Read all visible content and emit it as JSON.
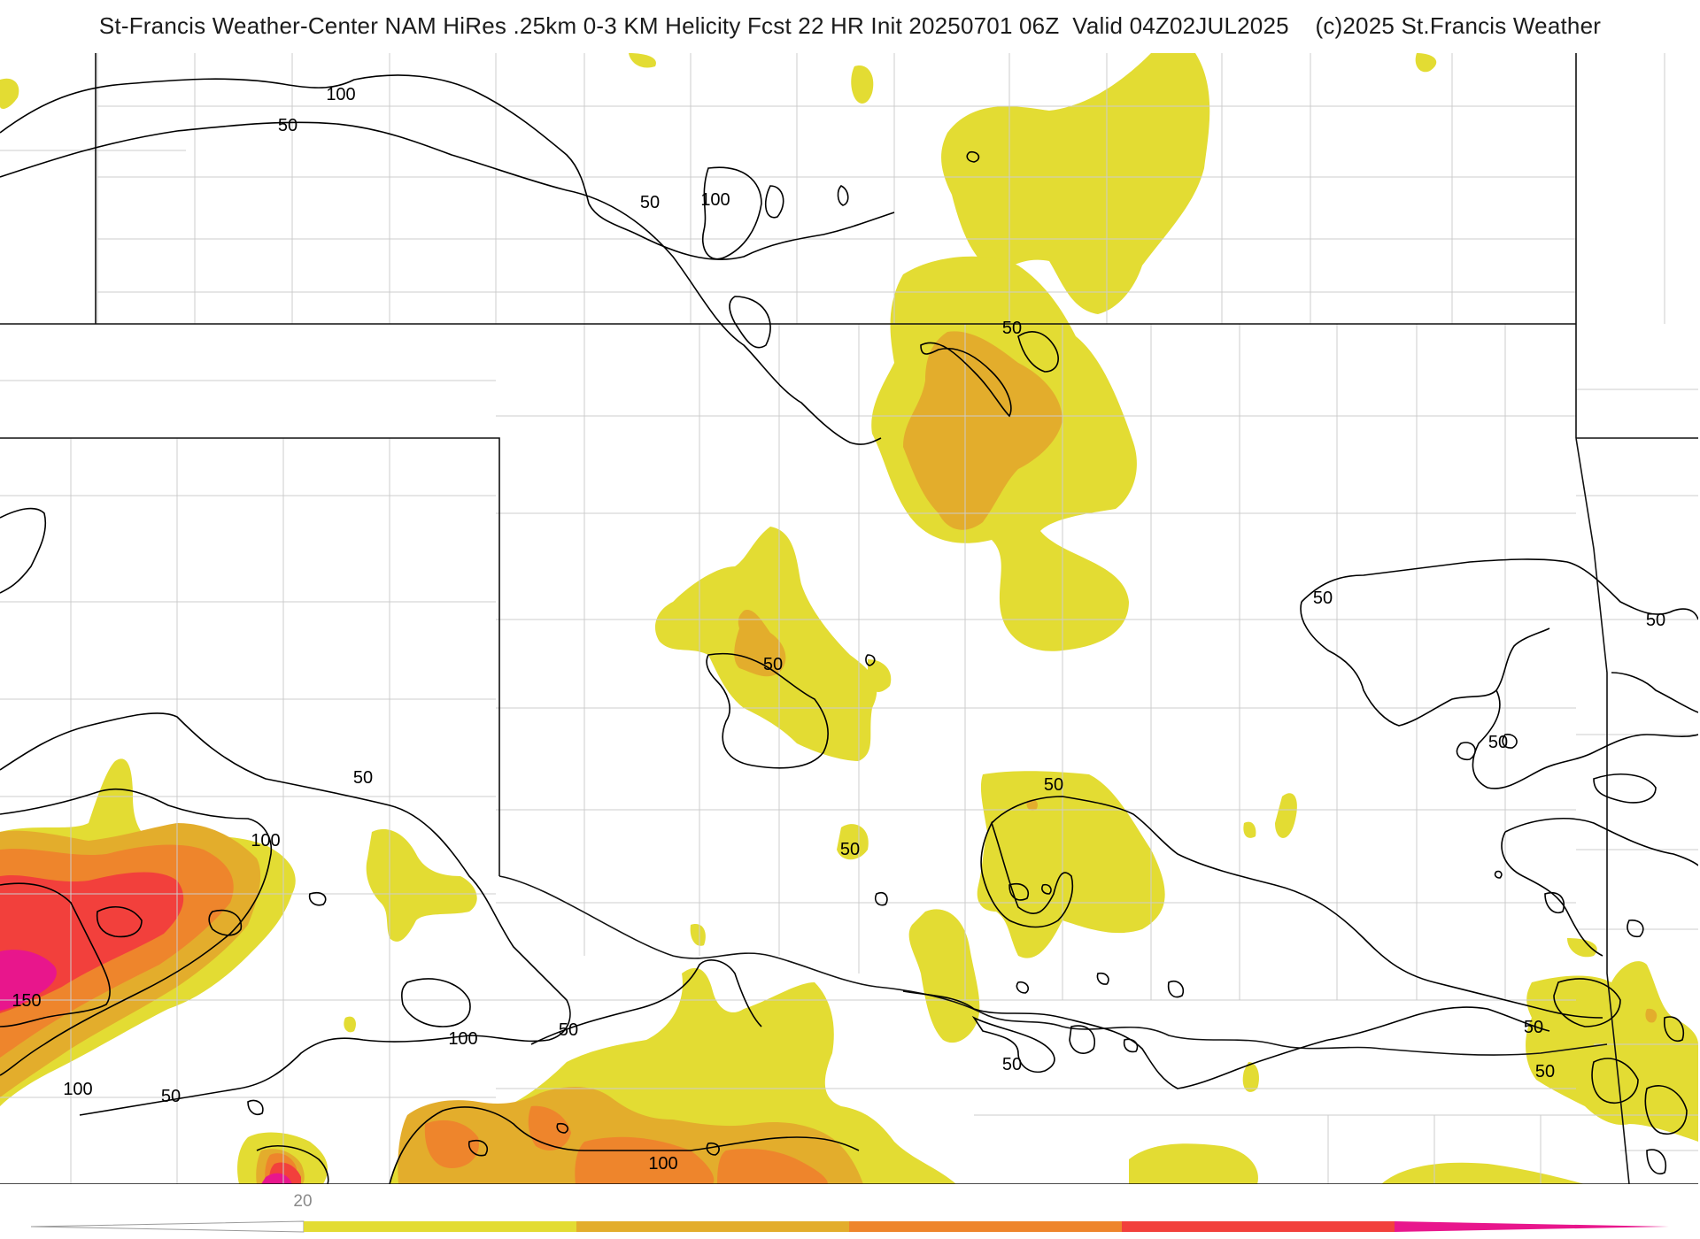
{
  "title": "St-Francis Weather-Center NAM HiRes .25km 0-3 KM Helicity Fcst 22 HR Init 20250701 06Z  Valid 04Z02JUL2025    (c)2025 St.Francis Weather",
  "colors": {
    "level_1": "#e3dc33",
    "level_2": "#e3ad2c",
    "level_3": "#ee852c",
    "level_4": "#f2403c",
    "level_5": "#e8168c",
    "county_lines": "#cccccc",
    "state_lines": "#111111",
    "contour_lines": "#000000"
  },
  "contour_labels": [
    {
      "text": "100"
    },
    {
      "text": "50"
    },
    {
      "text": "50"
    },
    {
      "text": "100"
    },
    {
      "text": "50"
    },
    {
      "text": "50"
    },
    {
      "text": "50"
    },
    {
      "text": "50"
    },
    {
      "text": "50"
    },
    {
      "text": "50"
    },
    {
      "text": "50"
    },
    {
      "text": "50"
    },
    {
      "text": "100"
    },
    {
      "text": "150"
    },
    {
      "text": "100"
    },
    {
      "text": "50"
    },
    {
      "text": "100"
    },
    {
      "text": "50"
    },
    {
      "text": "100"
    },
    {
      "text": "50"
    },
    {
      "text": "50"
    },
    {
      "text": "50"
    }
  ],
  "colorbar": {
    "tick_label": "20",
    "segments": [
      "#e3dc33",
      "#e3ad2c",
      "#ee852c",
      "#f2403c",
      "#e8168c"
    ]
  }
}
